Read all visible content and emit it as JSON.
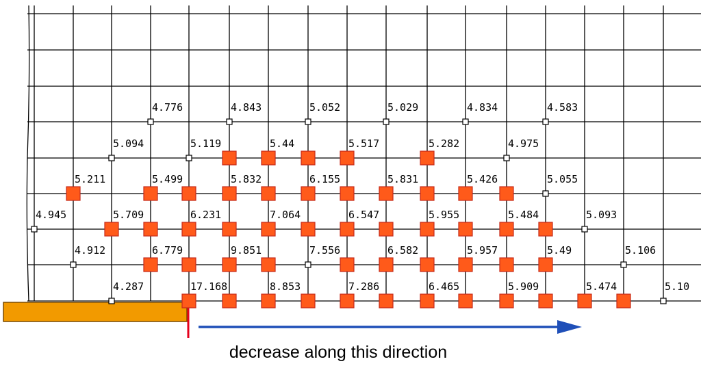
{
  "caption": "decrease along this direction",
  "legend_colors": {
    "grid_line": "#000000",
    "highlight_node_fill": "#ff5a1a",
    "highlight_node_stroke": "#c42a1a",
    "plate": "#f29a00",
    "plate_edge": "#7a4b00",
    "marker_line": "#e5001c",
    "arrow": "#1f4fb8"
  },
  "nodes": [
    {
      "row": 1,
      "col": 4,
      "label": "4.776",
      "highlight": false
    },
    {
      "row": 1,
      "col": 6,
      "label": "4.843",
      "highlight": false
    },
    {
      "row": 1,
      "col": 8,
      "label": "5.052",
      "highlight": false
    },
    {
      "row": 1,
      "col": 10,
      "label": "5.029",
      "highlight": false
    },
    {
      "row": 1,
      "col": 12,
      "label": "4.834",
      "highlight": false
    },
    {
      "row": 1,
      "col": 14,
      "label": "4.583",
      "highlight": false
    },
    {
      "row": 2,
      "col": 3,
      "label": "5.094",
      "highlight": false
    },
    {
      "row": 2,
      "col": 5,
      "label": "5.119",
      "highlight": false
    },
    {
      "row": 2,
      "col": 6,
      "label": "",
      "highlight": true
    },
    {
      "row": 2,
      "col": 7,
      "label": "5.44",
      "highlight": true
    },
    {
      "row": 2,
      "col": 8,
      "label": "",
      "highlight": true
    },
    {
      "row": 2,
      "col": 9,
      "label": "5.517",
      "highlight": true
    },
    {
      "row": 2,
      "col": 11,
      "label": "5.282",
      "highlight": true
    },
    {
      "row": 2,
      "col": 13,
      "label": "4.975",
      "highlight": false
    },
    {
      "row": 3,
      "col": 2,
      "label": "5.211",
      "highlight": true
    },
    {
      "row": 3,
      "col": 4,
      "label": "5.499",
      "highlight": true
    },
    {
      "row": 3,
      "col": 5,
      "label": "",
      "highlight": true
    },
    {
      "row": 3,
      "col": 6,
      "label": "5.832",
      "highlight": true
    },
    {
      "row": 3,
      "col": 7,
      "label": "",
      "highlight": true
    },
    {
      "row": 3,
      "col": 8,
      "label": "6.155",
      "highlight": true
    },
    {
      "row": 3,
      "col": 9,
      "label": "",
      "highlight": true
    },
    {
      "row": 3,
      "col": 10,
      "label": "5.831",
      "highlight": true
    },
    {
      "row": 3,
      "col": 11,
      "label": "",
      "highlight": true
    },
    {
      "row": 3,
      "col": 12,
      "label": "5.426",
      "highlight": true
    },
    {
      "row": 3,
      "col": 13,
      "label": "",
      "highlight": true
    },
    {
      "row": 3,
      "col": 14,
      "label": "5.055",
      "highlight": false
    },
    {
      "row": 4,
      "col": 1,
      "label": "4.945",
      "highlight": false
    },
    {
      "row": 4,
      "col": 3,
      "label": "5.709",
      "highlight": true
    },
    {
      "row": 4,
      "col": 4,
      "label": "",
      "highlight": true
    },
    {
      "row": 4,
      "col": 5,
      "label": "6.231",
      "highlight": true
    },
    {
      "row": 4,
      "col": 6,
      "label": "",
      "highlight": true
    },
    {
      "row": 4,
      "col": 7,
      "label": "7.064",
      "highlight": true
    },
    {
      "row": 4,
      "col": 8,
      "label": "",
      "highlight": true
    },
    {
      "row": 4,
      "col": 9,
      "label": "6.547",
      "highlight": true
    },
    {
      "row": 4,
      "col": 10,
      "label": "",
      "highlight": true
    },
    {
      "row": 4,
      "col": 11,
      "label": "5.955",
      "highlight": true
    },
    {
      "row": 4,
      "col": 12,
      "label": "",
      "highlight": true
    },
    {
      "row": 4,
      "col": 13,
      "label": "5.484",
      "highlight": true
    },
    {
      "row": 4,
      "col": 14,
      "label": "",
      "highlight": true
    },
    {
      "row": 4,
      "col": 15,
      "label": "5.093",
      "highlight": false
    },
    {
      "row": 5,
      "col": 2,
      "label": "4.912",
      "highlight": false
    },
    {
      "row": 5,
      "col": 4,
      "label": "6.779",
      "highlight": true
    },
    {
      "row": 5,
      "col": 5,
      "label": "",
      "highlight": true
    },
    {
      "row": 5,
      "col": 6,
      "label": "9.851",
      "highlight": true
    },
    {
      "row": 5,
      "col": 7,
      "label": "",
      "highlight": true
    },
    {
      "row": 5,
      "col": 8,
      "label": "7.556",
      "highlight": false
    },
    {
      "row": 5,
      "col": 9,
      "label": "",
      "highlight": true
    },
    {
      "row": 5,
      "col": 10,
      "label": "6.582",
      "highlight": true
    },
    {
      "row": 5,
      "col": 11,
      "label": "",
      "highlight": true
    },
    {
      "row": 5,
      "col": 12,
      "label": "5.957",
      "highlight": true
    },
    {
      "row": 5,
      "col": 13,
      "label": "",
      "highlight": true
    },
    {
      "row": 5,
      "col": 14,
      "label": "5.49",
      "highlight": true
    },
    {
      "row": 5,
      "col": 16,
      "label": "5.106",
      "highlight": false
    },
    {
      "row": 6,
      "col": 3,
      "label": "4.287",
      "highlight": false
    },
    {
      "row": 6,
      "col": 5,
      "label": "17.168",
      "highlight": true
    },
    {
      "row": 6,
      "col": 6,
      "label": "",
      "highlight": true
    },
    {
      "row": 6,
      "col": 7,
      "label": "8.853",
      "highlight": true
    },
    {
      "row": 6,
      "col": 8,
      "label": "",
      "highlight": true
    },
    {
      "row": 6,
      "col": 9,
      "label": "7.286",
      "highlight": true
    },
    {
      "row": 6,
      "col": 10,
      "label": "",
      "highlight": true
    },
    {
      "row": 6,
      "col": 11,
      "label": "6.465",
      "highlight": true
    },
    {
      "row": 6,
      "col": 12,
      "label": "",
      "highlight": true
    },
    {
      "row": 6,
      "col": 13,
      "label": "5.909",
      "highlight": true
    },
    {
      "row": 6,
      "col": 14,
      "label": "",
      "highlight": true
    },
    {
      "row": 6,
      "col": 15,
      "label": "5.474",
      "highlight": true
    },
    {
      "row": 6,
      "col": 16,
      "label": "",
      "highlight": true
    },
    {
      "row": 6,
      "col": 17,
      "label": "5.10",
      "highlight": false
    }
  ]
}
